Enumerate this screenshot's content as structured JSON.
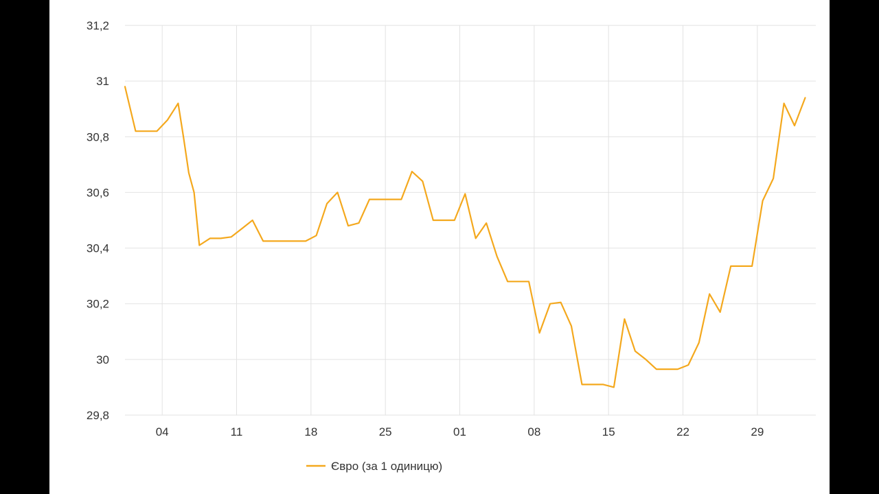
{
  "colors": {
    "series": "#f4a81d",
    "grid": "#e2e2e2",
    "text": "#333333",
    "letterbox": "#000000",
    "background": "#ffffff"
  },
  "chart_data": {
    "type": "line",
    "title": "",
    "xlabel": "",
    "ylabel": "",
    "ylim": [
      29.8,
      31.2
    ],
    "yticks": [
      "31,2",
      "31",
      "30,8",
      "30,6",
      "30,4",
      "30,2",
      "30",
      "29,8"
    ],
    "ytick_values": [
      31.2,
      31.0,
      30.8,
      30.6,
      30.4,
      30.2,
      30.0,
      29.8
    ],
    "xlim": [
      0,
      65
    ],
    "xticks": [
      "04",
      "11",
      "18",
      "25",
      "01",
      "08",
      "15",
      "22",
      "29"
    ],
    "xtick_values": [
      3.5,
      10.5,
      17.5,
      24.5,
      31.5,
      38.5,
      45.5,
      52.5,
      59.5
    ],
    "grid": true,
    "legend_position": "bottom-center",
    "series": [
      {
        "name": "Євро (за 1 одиницю)",
        "x": [
          0,
          1,
          2,
          3,
          4,
          5,
          5.5,
          6,
          6.5,
          7,
          8,
          9,
          10,
          11,
          12,
          13,
          14,
          15,
          16,
          17,
          18,
          19,
          20,
          21,
          22,
          23,
          24,
          25,
          26,
          27,
          28,
          29,
          30,
          31,
          32,
          33,
          34,
          35,
          36,
          37,
          38,
          39,
          40,
          41,
          42,
          43,
          44,
          45,
          46,
          47,
          48,
          49,
          50,
          51,
          52,
          53,
          54,
          55,
          56,
          57,
          58,
          59,
          60,
          61,
          62,
          63,
          64
        ],
        "values": [
          30.98,
          30.82,
          30.82,
          30.82,
          30.86,
          30.92,
          30.8,
          30.67,
          30.6,
          30.41,
          30.435,
          30.435,
          30.44,
          30.47,
          30.5,
          30.425,
          30.425,
          30.425,
          30.425,
          30.425,
          30.445,
          30.56,
          30.6,
          30.48,
          30.49,
          30.575,
          30.575,
          30.575,
          30.575,
          30.675,
          30.64,
          30.5,
          30.5,
          30.5,
          30.595,
          30.435,
          30.49,
          30.37,
          30.28,
          30.28,
          30.28,
          30.095,
          30.2,
          30.205,
          30.12,
          29.91,
          29.91,
          29.91,
          29.9,
          30.145,
          30.03,
          30.0,
          29.965,
          29.965,
          29.965,
          29.98,
          30.06,
          30.235,
          30.17,
          30.335,
          30.335,
          30.335,
          30.57,
          30.65,
          30.92,
          30.84,
          30.94
        ]
      }
    ]
  }
}
